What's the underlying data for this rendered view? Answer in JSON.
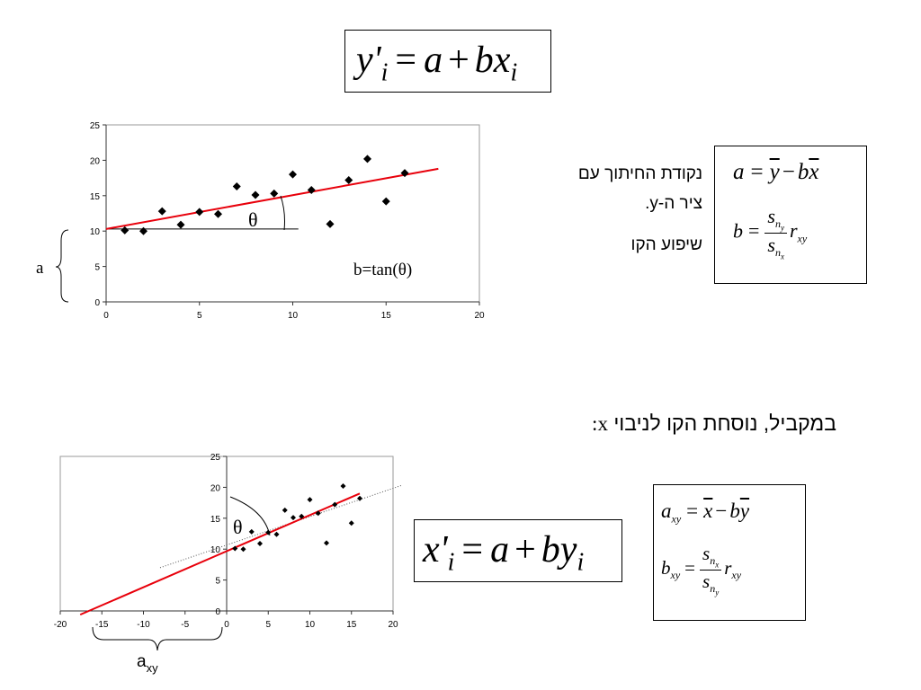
{
  "formulas": {
    "top_main": {
      "lhs": "y'",
      "lhs_sub": "i",
      "eq": "=",
      "a": "a",
      "plus": "+",
      "b": "bx",
      "b_sub": "i"
    },
    "top_box_a": {
      "lhs": "a",
      "eq": "=",
      "y": "y",
      "minus": "−",
      "b": "b",
      "x": "x"
    },
    "top_box_b": {
      "lhs": "b",
      "eq": "=",
      "num": "s",
      "num_sub": "n",
      "num_subsub": "y",
      "den": "s",
      "den_sub": "n",
      "den_subsub": "x",
      "r": "r",
      "r_sub": "xy"
    },
    "bottom_main": {
      "lhs": "x'",
      "lhs_sub": "i",
      "eq": "=",
      "a": "a",
      "plus": "+",
      "b": "by",
      "b_sub": "i"
    },
    "bottom_box_a": {
      "lhs": "a",
      "lhs_sub": "xy",
      "eq": "=",
      "x": "x",
      "minus": "−",
      "b": "b",
      "y": "y"
    },
    "bottom_box_b": {
      "lhs": "b",
      "lhs_sub": "xy",
      "eq": "=",
      "num": "s",
      "num_sub": "n",
      "num_subsub": "x",
      "den": "s",
      "den_sub": "n",
      "den_subsub": "y",
      "r": "r",
      "r_sub": "xy"
    }
  },
  "hebrew": {
    "intercept_line1": "נקודת החיתוך עם",
    "intercept_line2": "ציר ה-y.",
    "slope": "שיפוע הקו",
    "parallel": "במקביל, נוסחת הקו לניבוי",
    "parallel_var": "x:"
  },
  "annotations": {
    "theta": "θ",
    "b_tan": "b=tan(θ)",
    "a_label": "a",
    "axy_label": "a",
    "axy_sub": "xy"
  },
  "chart_data": [
    {
      "type": "scatter",
      "xlim": [
        0,
        20
      ],
      "ylim": [
        0,
        25
      ],
      "x_ticks": [
        0,
        5,
        10,
        15,
        20
      ],
      "y_ticks": [
        0,
        5,
        10,
        15,
        20,
        25
      ],
      "points": [
        [
          1,
          10.1
        ],
        [
          2,
          10
        ],
        [
          3,
          12.8
        ],
        [
          4,
          10.9
        ],
        [
          5,
          12.7
        ],
        [
          6,
          12.4
        ],
        [
          7,
          16.3
        ],
        [
          8,
          15.1
        ],
        [
          9,
          15.3
        ],
        [
          10,
          18
        ],
        [
          11,
          15.8
        ],
        [
          12,
          11
        ],
        [
          13,
          17.2
        ],
        [
          14,
          20.2
        ],
        [
          15,
          14.2
        ],
        [
          16,
          18.2
        ]
      ],
      "regression_line": {
        "color": "#e8000b",
        "x": [
          0,
          17.8
        ],
        "y": [
          10.3,
          18.8
        ]
      },
      "grid": false
    },
    {
      "type": "scatter",
      "xlim": [
        -20,
        20
      ],
      "ylim": [
        0,
        25
      ],
      "x_ticks": [
        -20,
        -15,
        -10,
        -5,
        0,
        5,
        10,
        15,
        20
      ],
      "y_ticks": [
        0,
        5,
        10,
        15,
        20,
        25
      ],
      "points": [
        [
          1,
          10.1
        ],
        [
          2,
          10
        ],
        [
          3,
          12.8
        ],
        [
          4,
          10.9
        ],
        [
          5,
          12.7
        ],
        [
          6,
          12.4
        ],
        [
          7,
          16.3
        ],
        [
          8,
          15.1
        ],
        [
          9,
          15.3
        ],
        [
          10,
          18
        ],
        [
          11,
          15.8
        ],
        [
          12,
          11
        ],
        [
          13,
          17.2
        ],
        [
          14,
          20.2
        ],
        [
          15,
          14.2
        ],
        [
          16,
          18.2
        ]
      ],
      "regression_line": {
        "color": "#e8000b",
        "x": [
          -17.6,
          16
        ],
        "y": [
          -0.6,
          19
        ]
      },
      "dotted_line": {
        "x": [
          -8,
          21
        ],
        "y": [
          7,
          20.3
        ]
      },
      "grid": false
    }
  ]
}
